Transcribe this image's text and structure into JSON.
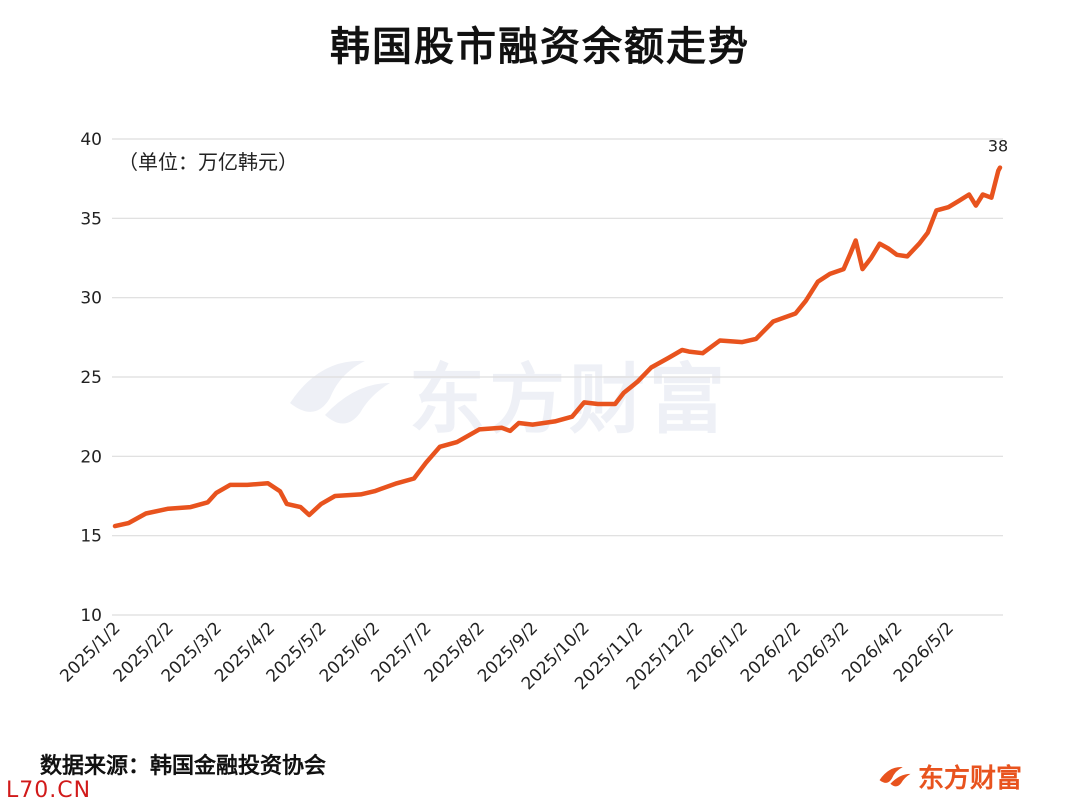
{
  "title": "韩国股市融资余额走势",
  "unit_label": "（单位：万亿韩元）",
  "source": "数据来源：韩国金融投资协会",
  "site_mark": "L70.CN",
  "brand": "东方财富",
  "watermark": "东方财富",
  "colors": {
    "line": "#e8531e",
    "grid": "#dddddd"
  },
  "chart_data": {
    "type": "line",
    "title": "韩国股市融资余额走势",
    "ylabel": "（单位：万亿韩元）",
    "ylim": [
      10,
      40
    ],
    "yticks": [
      10,
      15,
      20,
      25,
      30,
      35,
      40
    ],
    "xticks": [
      "2025/1/2",
      "2025/2/2",
      "2025/3/2",
      "2025/4/2",
      "2025/5/2",
      "2025/6/2",
      "2025/7/2",
      "2025/8/2",
      "2025/9/2",
      "2025/10/2",
      "2025/11/2",
      "2025/12/2",
      "2026/1/2",
      "2026/2/2",
      "2026/3/2",
      "2026/4/2",
      "2026/5/2"
    ],
    "grid": true,
    "end_label": "38",
    "series": [
      {
        "values": [
          [
            "2025/1/2",
            15.6
          ],
          [
            "2025/1/10",
            15.8
          ],
          [
            "2025/1/20",
            16.4
          ],
          [
            "2025/2/2",
            16.7
          ],
          [
            "2025/2/15",
            16.8
          ],
          [
            "2025/2/25",
            17.1
          ],
          [
            "2025/3/2",
            17.7
          ],
          [
            "2025/3/10",
            18.2
          ],
          [
            "2025/3/20",
            18.2
          ],
          [
            "2025/4/1",
            18.3
          ],
          [
            "2025/4/8",
            17.8
          ],
          [
            "2025/4/12",
            17.0
          ],
          [
            "2025/4/20",
            16.8
          ],
          [
            "2025/4/25",
            16.3
          ],
          [
            "2025/5/2",
            17.0
          ],
          [
            "2025/5/10",
            17.5
          ],
          [
            "2025/5/25",
            17.6
          ],
          [
            "2025/6/2",
            17.8
          ],
          [
            "2025/6/15",
            18.3
          ],
          [
            "2025/6/25",
            18.6
          ],
          [
            "2025/7/2",
            19.6
          ],
          [
            "2025/7/10",
            20.6
          ],
          [
            "2025/7/20",
            20.9
          ],
          [
            "2025/8/2",
            21.7
          ],
          [
            "2025/8/15",
            21.8
          ],
          [
            "2025/8/20",
            21.6
          ],
          [
            "2025/8/25",
            22.1
          ],
          [
            "2025/9/2",
            22.0
          ],
          [
            "2025/9/15",
            22.2
          ],
          [
            "2025/9/25",
            22.5
          ],
          [
            "2025/10/2",
            23.4
          ],
          [
            "2025/10/10",
            23.3
          ],
          [
            "2025/10/20",
            23.3
          ],
          [
            "2025/10/25",
            24.0
          ],
          [
            "2025/11/2",
            24.7
          ],
          [
            "2025/11/10",
            25.6
          ],
          [
            "2025/11/20",
            26.2
          ],
          [
            "2025/11/28",
            26.7
          ],
          [
            "2025/12/2",
            26.6
          ],
          [
            "2025/12/10",
            26.5
          ],
          [
            "2025/12/20",
            27.3
          ],
          [
            "2026/1/2",
            27.2
          ],
          [
            "2026/1/10",
            27.4
          ],
          [
            "2026/1/20",
            28.5
          ],
          [
            "2026/2/2",
            29.0
          ],
          [
            "2026/2/8",
            29.8
          ],
          [
            "2026/2/15",
            31.0
          ],
          [
            "2026/2/22",
            31.5
          ],
          [
            "2026/3/2",
            31.8
          ],
          [
            "2026/3/6",
            32.8
          ],
          [
            "2026/3/9",
            33.6
          ],
          [
            "2026/3/13",
            31.8
          ],
          [
            "2026/3/18",
            32.5
          ],
          [
            "2026/3/23",
            33.4
          ],
          [
            "2026/3/28",
            33.1
          ],
          [
            "2026/4/2",
            32.7
          ],
          [
            "2026/4/8",
            32.6
          ],
          [
            "2026/4/15",
            33.4
          ],
          [
            "2026/4/20",
            34.1
          ],
          [
            "2026/4/25",
            35.5
          ],
          [
            "2026/5/2",
            35.7
          ],
          [
            "2026/5/8",
            36.1
          ],
          [
            "2026/5/14",
            36.5
          ],
          [
            "2026/5/18",
            35.8
          ],
          [
            "2026/5/22",
            36.5
          ],
          [
            "2026/5/27",
            36.3
          ],
          [
            "2026/5/31",
            38.0
          ],
          [
            "2026/6/1",
            38.2
          ]
        ]
      }
    ]
  }
}
